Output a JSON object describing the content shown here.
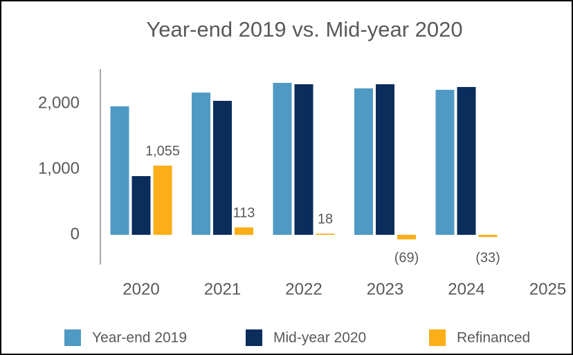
{
  "chart_data": {
    "type": "bar",
    "title": "Year-end 2019 vs. Mid-year 2020",
    "categories": [
      "2020",
      "2021",
      "2022",
      "2023",
      "2024",
      "2025"
    ],
    "series": [
      {
        "name": "Year-end 2019",
        "color": "#4f9ac4",
        "values": [
          1958,
          2168,
          2316,
          2232,
          2210,
          null
        ]
      },
      {
        "name": "Mid-year 2020",
        "color": "#0a2d5c",
        "values": [
          895,
          2042,
          2295,
          2295,
          2253,
          null
        ]
      },
      {
        "name": "Refinanced",
        "color": "#fbae17",
        "values": [
          1055,
          113,
          18,
          -69,
          -33,
          null
        ],
        "value_labels": [
          "1,055",
          "113",
          "18",
          "(69)",
          "(33)",
          null
        ]
      }
    ],
    "ylim": [
      -450,
      2500
    ],
    "yticks": [
      0,
      {
        "value": 1000,
        "label": "1,000"
      },
      {
        "value": 2000,
        "label": "2,000"
      }
    ],
    "grid": false,
    "legend": "bottom"
  }
}
